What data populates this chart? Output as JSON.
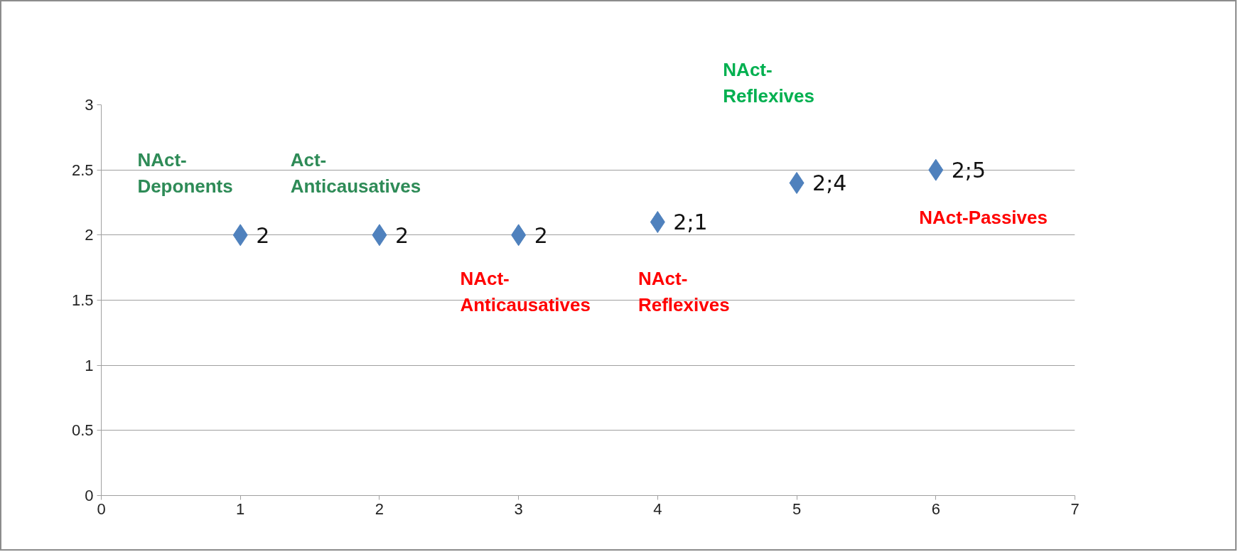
{
  "chart_data": {
    "type": "scatter",
    "x": [
      1,
      2,
      3,
      4,
      5,
      6
    ],
    "series": [
      {
        "color": "#4f81bd",
        "values": [
          2,
          2,
          2,
          2.1,
          2.4,
          2.5
        ],
        "value_labels": [
          "2",
          "2",
          "2",
          "2;1",
          "2;4",
          "2;5"
        ]
      }
    ],
    "marker": "diamond",
    "xlim": [
      0,
      7
    ],
    "ylim": [
      0,
      3
    ],
    "xticks": [
      0,
      1,
      2,
      3,
      4,
      5,
      6,
      7
    ],
    "yticks": [
      0,
      0.5,
      1,
      1.5,
      2,
      2.5,
      3
    ],
    "grid": "y",
    "annotations": [
      "NAct-\nDeponents",
      "Act-\nAnticausatives",
      "NAct-\nAnticausatives",
      "NAct-\nReflexives",
      "NAct-\nReflexives",
      "NAct-Passives"
    ]
  }
}
